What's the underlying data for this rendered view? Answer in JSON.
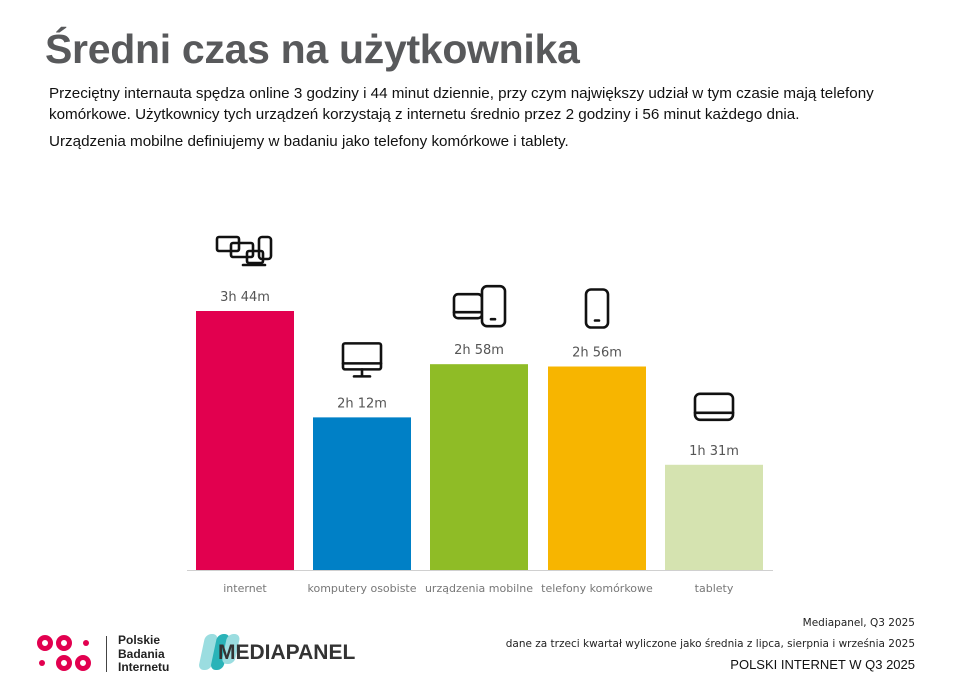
{
  "title": "Średni czas na użytkownika",
  "description": "Przeciętny internauta spędza online 3 godziny i 44 minut dziennie, przy czym największy udział w tym czasie mają telefony komórkowe. Użytkownicy tych urządzeń korzystają z internetu średnio przez 2 godziny i 56 minut każdego dnia.",
  "note": "Urządzenia mobilne definiujemy w badaniu jako telefony komórkowe i tablety.",
  "chart_data": {
    "type": "bar",
    "categories": [
      "internet",
      "komputery osobiste",
      "urządzenia mobilne",
      "telefony komórkowe",
      "tablety"
    ],
    "values": [
      224,
      132,
      178,
      176,
      91
    ],
    "value_unit": "minutes per day",
    "data_labels": [
      "3h 44m",
      "2h 12m",
      "2h 58m",
      "2h 56m",
      "1h 31m"
    ],
    "colors": [
      "#e2004f",
      "#0080c6",
      "#8fbc26",
      "#f7b500",
      "#d5e3b0"
    ],
    "icons": [
      "multi-device-icon",
      "desktop-icon",
      "mobile-devices-icon",
      "phone-icon",
      "tablet-icon"
    ],
    "ylim": [
      0,
      224
    ],
    "grid": false,
    "legend": "none"
  },
  "footer": {
    "source": "Mediapanel, Q3 2025",
    "data_note": "dane za trzeci kwartał wyliczone jako średnia z lipca, sierpnia i września 2025",
    "report": "POLSKI INTERNET W Q3 2025",
    "logo_pbi": "Polskie Badania Internetu",
    "logo_mediapanel": "MEDIAPANEL"
  }
}
